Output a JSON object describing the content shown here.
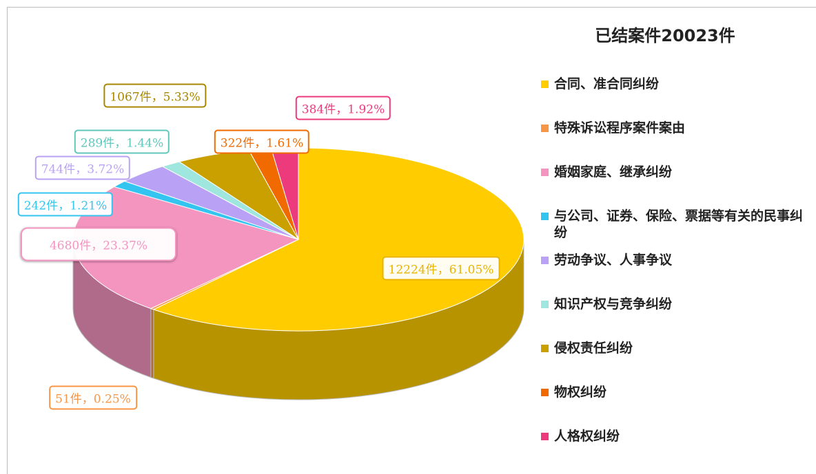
{
  "chart_data": {
    "type": "pie",
    "title": "已结案件20023件",
    "categories": [
      "合同、准合同纠纷",
      "特殊诉讼程序案件案由",
      "婚姻家庭、继承纠纷",
      "与公司、证券、保险、票据等有关的民事纠纷",
      "劳动争议、人事争议",
      "知识产权与竞争纠纷",
      "侵权责任纠纷",
      "物权纠纷",
      "人格权纠纷"
    ],
    "values": [
      12224,
      51,
      4680,
      242,
      744,
      289,
      1067,
      322,
      384
    ],
    "value_labels": [
      "12224件，61.05%",
      "51件，0.25%",
      "4680件，23.37%",
      "242件，1.21%",
      "744件，3.72%",
      "289件，1.44%",
      "1067件，5.33%",
      "322件，1.61%",
      "384件，1.92%"
    ],
    "colors": [
      "#FFCC00",
      "#F79646",
      "#F495C0",
      "#33C4F0",
      "#B9A2F5",
      "#9EE6DE",
      "#C9A000",
      "#F06A00",
      "#EC3A7C"
    ],
    "legend": "right"
  }
}
